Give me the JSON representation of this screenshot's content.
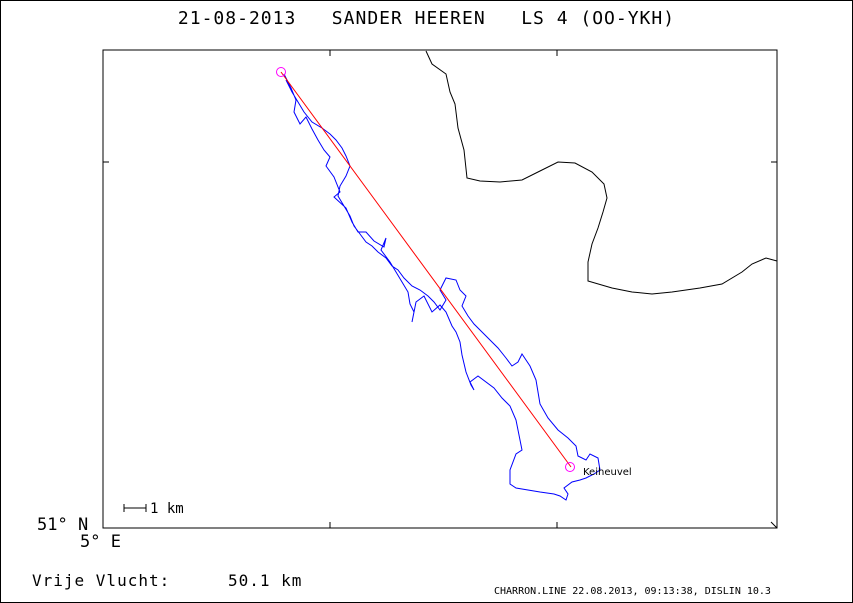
{
  "title": "21-08-2013   SANDER HEEREN   LS 4 (OO-YKH)",
  "axes": {
    "lat_label": "51° N",
    "lon_label": "5° E"
  },
  "scale_bar": {
    "label": "1 km"
  },
  "flight": {
    "distance_label": "Vrije Vlucht:",
    "distance_value": "50.1 km"
  },
  "place": {
    "name": "Keiheuvel"
  },
  "footer": "CHARRON.LINE 22.08.2013, 09:13:38, DISLIN 10.3",
  "colors": {
    "track": "#0000ff",
    "task_line": "#ff0000",
    "turnpoint": "#ff00ff",
    "coastline": "#000000",
    "frame": "#000000"
  }
}
